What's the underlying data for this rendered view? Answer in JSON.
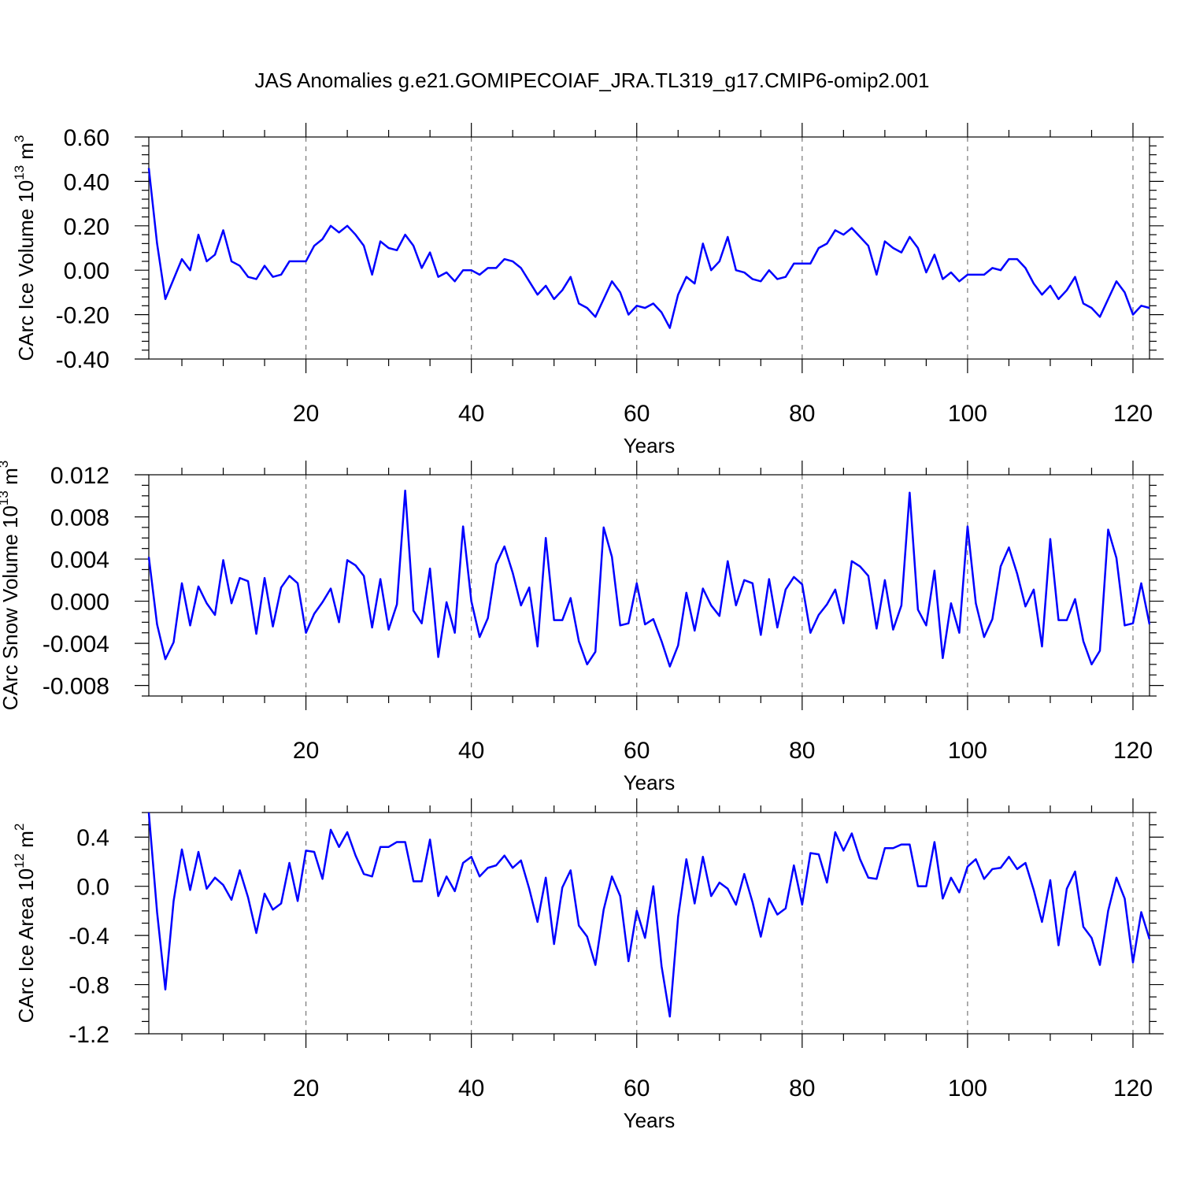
{
  "title": "JAS Anomalies g.e21.GOMIPECOIAF_JRA.TL319_g17.CMIP6-omip2.001",
  "chart_data": [
    {
      "type": "line",
      "ylabel_main": "CArc Ice Volume 10",
      "ylabel_exp": "13",
      "ylabel_unit": " m",
      "ylabel_unit_exp": "3",
      "xlabel": "Years",
      "xlim": [
        1,
        122
      ],
      "ylim": [
        -0.4,
        0.6
      ],
      "xticks": [
        20,
        40,
        60,
        80,
        100,
        120
      ],
      "yticks": [
        -0.4,
        -0.2,
        0.0,
        0.2,
        0.4,
        0.6
      ],
      "ytick_labels": [
        "-0.40",
        "-0.20",
        "0.00",
        "0.20",
        "0.40",
        "0.60"
      ],
      "ymajor_step": 0.2,
      "ynminor": 4,
      "grid": "vertical dashed at x ticks",
      "color": "#0000ff",
      "x_start": 1,
      "values": [
        0.46,
        0.12,
        -0.13,
        -0.04,
        0.05,
        0.0,
        0.16,
        0.04,
        0.07,
        0.18,
        0.04,
        0.02,
        -0.03,
        -0.04,
        0.02,
        -0.03,
        -0.02,
        0.04,
        0.04,
        0.04,
        0.11,
        0.14,
        0.2,
        0.17,
        0.2,
        0.16,
        0.11,
        -0.02,
        0.13,
        0.1,
        0.09,
        0.16,
        0.11,
        0.01,
        0.08,
        -0.03,
        -0.01,
        -0.05,
        0.0,
        0.0,
        -0.02,
        0.01,
        0.01,
        0.05,
        0.04,
        0.01,
        -0.05,
        -0.11,
        -0.07,
        -0.13,
        -0.09,
        -0.03,
        -0.15,
        -0.17,
        -0.21,
        -0.13,
        -0.05,
        -0.1,
        -0.2,
        -0.16,
        -0.17,
        -0.15,
        -0.19,
        -0.26,
        -0.11,
        -0.03,
        -0.06,
        0.12,
        0.0,
        0.04,
        0.15,
        0.0,
        -0.01,
        -0.04,
        -0.05,
        0.0,
        -0.04,
        -0.03,
        0.03,
        0.03,
        0.03,
        0.1,
        0.12,
        0.18,
        0.16,
        0.19,
        0.15,
        0.11,
        -0.02,
        0.13,
        0.1,
        0.08,
        0.15,
        0.1,
        -0.01,
        0.07,
        -0.04,
        -0.01,
        -0.05,
        -0.02,
        -0.02,
        -0.02,
        0.01,
        0.0,
        0.05,
        0.05,
        0.01,
        -0.06,
        -0.11,
        -0.07,
        -0.13,
        -0.09,
        -0.03,
        -0.15,
        -0.17,
        -0.21,
        -0.13,
        -0.05,
        -0.1,
        -0.2,
        -0.16,
        -0.17
      ]
    },
    {
      "type": "line",
      "ylabel_main": "CArc Snow Volume 10",
      "ylabel_exp": "13",
      "ylabel_unit": " m",
      "ylabel_unit_exp": "3",
      "xlabel": "Years",
      "xlim": [
        1,
        122
      ],
      "ylim": [
        -0.009,
        0.012
      ],
      "xticks": [
        20,
        40,
        60,
        80,
        100,
        120
      ],
      "yticks": [
        -0.008,
        -0.004,
        0.0,
        0.004,
        0.008,
        0.012
      ],
      "ytick_labels": [
        "-0.008",
        "-0.004",
        "0.000",
        "0.004",
        "0.008",
        "0.012"
      ],
      "ymajor_step": 0.004,
      "ynminor": 3,
      "grid": "vertical dashed at x ticks",
      "color": "#0000ff",
      "x_start": 1,
      "values": [
        0.0042,
        -0.0022,
        -0.0055,
        -0.0039,
        0.0017,
        -0.0023,
        0.0014,
        -0.0002,
        -0.0013,
        0.0039,
        -0.0002,
        0.0022,
        0.0019,
        -0.0031,
        0.0022,
        -0.0024,
        0.0013,
        0.0024,
        0.0017,
        -0.003,
        -0.0012,
        -0.0001,
        0.0012,
        -0.002,
        0.0039,
        0.0034,
        0.0024,
        -0.0025,
        0.0021,
        -0.0027,
        -0.0003,
        0.0105,
        -0.0009,
        -0.0021,
        0.0031,
        -0.0053,
        -0.0001,
        -0.003,
        0.0071,
        0.0,
        -0.0034,
        -0.0016,
        0.0035,
        0.0052,
        0.0027,
        -0.0004,
        0.0013,
        -0.0043,
        0.006,
        -0.0018,
        -0.0018,
        0.0003,
        -0.0038,
        -0.006,
        -0.0048,
        0.007,
        0.0042,
        -0.0023,
        -0.0021,
        0.0017,
        -0.0022,
        -0.0017,
        -0.0038,
        -0.0062,
        -0.0042,
        0.0008,
        -0.0028,
        0.0012,
        -0.0004,
        -0.0014,
        0.0038,
        -0.0004,
        0.002,
        0.0017,
        -0.0032,
        0.0021,
        -0.0025,
        0.0011,
        0.0023,
        0.0016,
        -0.003,
        -0.0013,
        -0.0003,
        0.0011,
        -0.0021,
        0.0038,
        0.0033,
        0.0024,
        -0.0026,
        0.002,
        -0.0027,
        -0.0004,
        0.0103,
        -0.0008,
        -0.0023,
        0.0029,
        -0.0054,
        -0.0002,
        -0.003,
        0.0071,
        -0.0002,
        -0.0034,
        -0.0017,
        0.0033,
        0.0051,
        0.0026,
        -0.0005,
        0.0011,
        -0.0043,
        0.0059,
        -0.0018,
        -0.0018,
        0.0002,
        -0.0038,
        -0.006,
        -0.0047,
        0.0068,
        0.0041,
        -0.0023,
        -0.0021,
        0.0017,
        -0.0022
      ]
    },
    {
      "type": "line",
      "ylabel_main": "CArc Ice Area 10",
      "ylabel_exp": "12",
      "ylabel_unit": " m",
      "ylabel_unit_exp": "2",
      "xlabel": "Years",
      "xlim": [
        1,
        122
      ],
      "ylim": [
        -1.2,
        0.6
      ],
      "xticks": [
        20,
        40,
        60,
        80,
        100,
        120
      ],
      "yticks": [
        -1.2,
        -0.8,
        -0.4,
        0.0,
        0.4
      ],
      "ytick_labels": [
        "-1.2",
        "-0.8",
        "-0.4",
        "0.0",
        "0.4"
      ],
      "ymajor_step": 0.4,
      "ynminor": 3,
      "grid": "vertical dashed at x ticks",
      "color": "#0000ff",
      "x_start": 1,
      "values": [
        0.6,
        -0.21,
        -0.84,
        -0.12,
        0.3,
        -0.03,
        0.28,
        -0.02,
        0.07,
        0.01,
        -0.11,
        0.13,
        -0.09,
        -0.38,
        -0.06,
        -0.19,
        -0.14,
        0.19,
        -0.12,
        0.29,
        0.28,
        0.06,
        0.46,
        0.32,
        0.44,
        0.25,
        0.1,
        0.08,
        0.32,
        0.32,
        0.36,
        0.36,
        0.04,
        0.04,
        0.38,
        -0.08,
        0.08,
        -0.04,
        0.19,
        0.24,
        0.08,
        0.15,
        0.17,
        0.25,
        0.15,
        0.21,
        -0.02,
        -0.29,
        0.07,
        -0.47,
        -0.01,
        0.13,
        -0.32,
        -0.41,
        -0.64,
        -0.19,
        0.08,
        -0.08,
        -0.61,
        -0.2,
        -0.42,
        0.0,
        -0.65,
        -1.06,
        -0.25,
        0.22,
        -0.14,
        0.24,
        -0.08,
        0.03,
        -0.02,
        -0.15,
        0.1,
        -0.13,
        -0.41,
        -0.1,
        -0.23,
        -0.18,
        0.17,
        -0.15,
        0.27,
        0.26,
        0.03,
        0.44,
        0.29,
        0.43,
        0.22,
        0.07,
        0.06,
        0.31,
        0.31,
        0.34,
        0.34,
        0.0,
        0.0,
        0.36,
        -0.1,
        0.07,
        -0.05,
        0.16,
        0.22,
        0.06,
        0.14,
        0.15,
        0.24,
        0.14,
        0.19,
        -0.03,
        -0.29,
        0.05,
        -0.48,
        -0.02,
        0.12,
        -0.33,
        -0.42,
        -0.64,
        -0.2,
        0.07,
        -0.1,
        -0.62,
        -0.21,
        -0.43
      ]
    }
  ]
}
